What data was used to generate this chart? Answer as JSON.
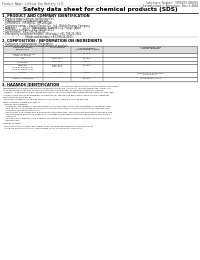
{
  "bg_color": "#ffffff",
  "header_left": "Product Name: Lithium Ion Battery Cell",
  "header_right_line1": "Substance Number: 99R0499-000010",
  "header_right_line2": "Established / Revision: Dec.7,2010",
  "title": "Safety data sheet for chemical products (SDS)",
  "section1_title": "1. PRODUCT AND COMPANY IDENTIFICATION",
  "section1_items": [
    "Product name: Lithium Ion Battery Cell",
    "Product code: Cylindrical-type cell",
    "   (IHR18650U, IHR18650L, IHR18650A)",
    "Company name:    Sanyo Electric Co., Ltd.  Mobile Energy Company",
    "Address:         20-21, Kannondori, Sumoto-City, Hyogo, Japan",
    "Telephone number:   +81-799-26-4111",
    "Fax number:  +81-799-26-4128",
    "Emergency telephone number: (Weekday) +81-799-26-3562",
    "                              (Night and holiday) +81-799-26-4101"
  ],
  "section2_title": "2. COMPOSITION / INFORMATION ON INGREDIENTS",
  "section2_sub": "Substance or preparation: Preparation",
  "section2_sub2": "Information about the chemical nature of product:",
  "table_headers": [
    "Chemical name /\nComponent",
    "CAS number",
    "Concentration /\nConcentration range",
    "Classification and\nhazard labeling"
  ],
  "table_rows": [
    [
      "Lithium cobalt oxide\n(LiMn-Co-PROO)",
      "",
      "30-60%",
      ""
    ],
    [
      "Iron",
      "7439-89-6",
      "10-20%",
      "-"
    ],
    [
      "Aluminum",
      "7429-90-5",
      "3-6%",
      "-"
    ],
    [
      "Graphite\n(Anode graphite-1)\n(Anode graphite-2)",
      "7782-42-5\n7782-44-2",
      "10-20%",
      "-"
    ],
    [
      "Copper",
      "7440-50-8",
      "5-15%",
      "Sensitization of the skin\ngroup R43.2"
    ],
    [
      "Organic electrolyte",
      "",
      "10-20%",
      "Inflammable liquid"
    ]
  ],
  "section3_title": "3. HAZARDS IDENTIFICATION",
  "section3_text": [
    "For the battery cell, chemical materials are stored in a hermetically sealed metal case, designed to withstand",
    "temperatures and pressures-conditions during normal use. As a result, during normal use, there is no",
    "physical danger of ignition or explosion and there is no danger of hazardous materials leakage.",
    "  However, if exposed to a fire, added mechanical shock, decomposed, armed interior chemical may leak.",
    "As gas trouble cannot be operated. The battery cell case will be breached at the extreme, hazardous",
    "materials may be released.",
    "  Moreover, if heated strongly by the surrounding fire, some gas may be emitted.",
    "",
    "Most important hazard and effects:",
    "  Human health effects:",
    "    Inhalation: The release of the electrolyte has an anesthetic action and stimulates a respiratory tract.",
    "    Skin contact: The release of the electrolyte stimulates a skin. The electrolyte skin contact causes a",
    "    sore and stimulation on the skin.",
    "    Eye contact: The release of the electrolyte stimulates eyes. The electrolyte eye contact causes a sore",
    "    and stimulation on the eye. Especially, a substance that causes a strong inflammation of the eye is",
    "    contained.",
    "    Environmental effects: Since a battery cell remains in the environment, do not throw out it into the",
    "    environment.",
    "",
    "Specific hazards:",
    "  If the electrolyte contacts with water, it will generate detrimental hydrogen fluoride.",
    "  Since the used electrolyte is inflammable liquid, do not bring close to fire."
  ]
}
